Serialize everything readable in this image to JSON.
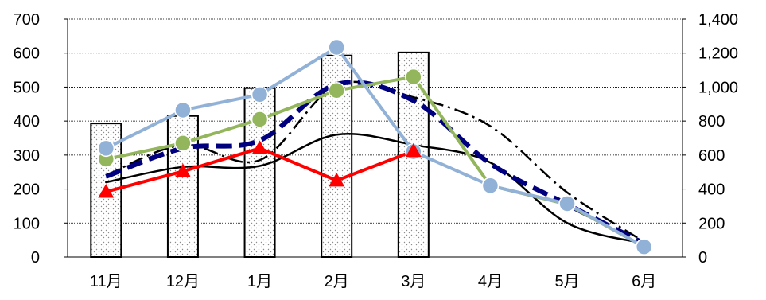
{
  "chart_data": {
    "type": "bar",
    "title": "",
    "categories": [
      "11月",
      "12月",
      "1月",
      "2月",
      "3月",
      "4月",
      "5月",
      "6月"
    ],
    "y_left": {
      "range": [
        0,
        700
      ],
      "ticks": [
        "0",
        "100",
        "200",
        "300",
        "400",
        "500",
        "600",
        "700"
      ]
    },
    "y_right": {
      "range": [
        0,
        1400
      ],
      "ticks": [
        "0",
        "200",
        "400",
        "600",
        "800",
        "1,000",
        "1,200",
        "1,400"
      ]
    },
    "grid": true,
    "bars": {
      "axis": "left",
      "pattern": "dotted",
      "values": [
        393,
        415,
        497,
        593,
        602,
        null,
        null,
        null
      ]
    },
    "series": [
      {
        "axis": "left",
        "style": "solid-black-smooth",
        "color": "#000000",
        "values": [
          220,
          265,
          268,
          360,
          330,
          278,
          100,
          40
        ]
      },
      {
        "axis": "left",
        "style": "dash-dot-black",
        "color": "#000000",
        "values": [
          240,
          330,
          285,
          505,
          470,
          385,
          190,
          45
        ]
      },
      {
        "axis": "left",
        "style": "dashed-navy",
        "color": "#00007f",
        "values": [
          237,
          320,
          343,
          508,
          460,
          275,
          155,
          40
        ]
      },
      {
        "axis": "left",
        "style": "green-circles",
        "color": "#93b65c",
        "values": [
          288,
          335,
          405,
          490,
          530,
          210,
          155,
          30
        ]
      },
      {
        "axis": "left",
        "style": "lightblue-circles",
        "color": "#92b1d7",
        "values": [
          320,
          432,
          478,
          617,
          310,
          210,
          157,
          30
        ]
      },
      {
        "axis": "left",
        "style": "red-triangles",
        "color": "#ff0000",
        "values": [
          192,
          252,
          320,
          225,
          312,
          null,
          null,
          null
        ]
      }
    ]
  }
}
